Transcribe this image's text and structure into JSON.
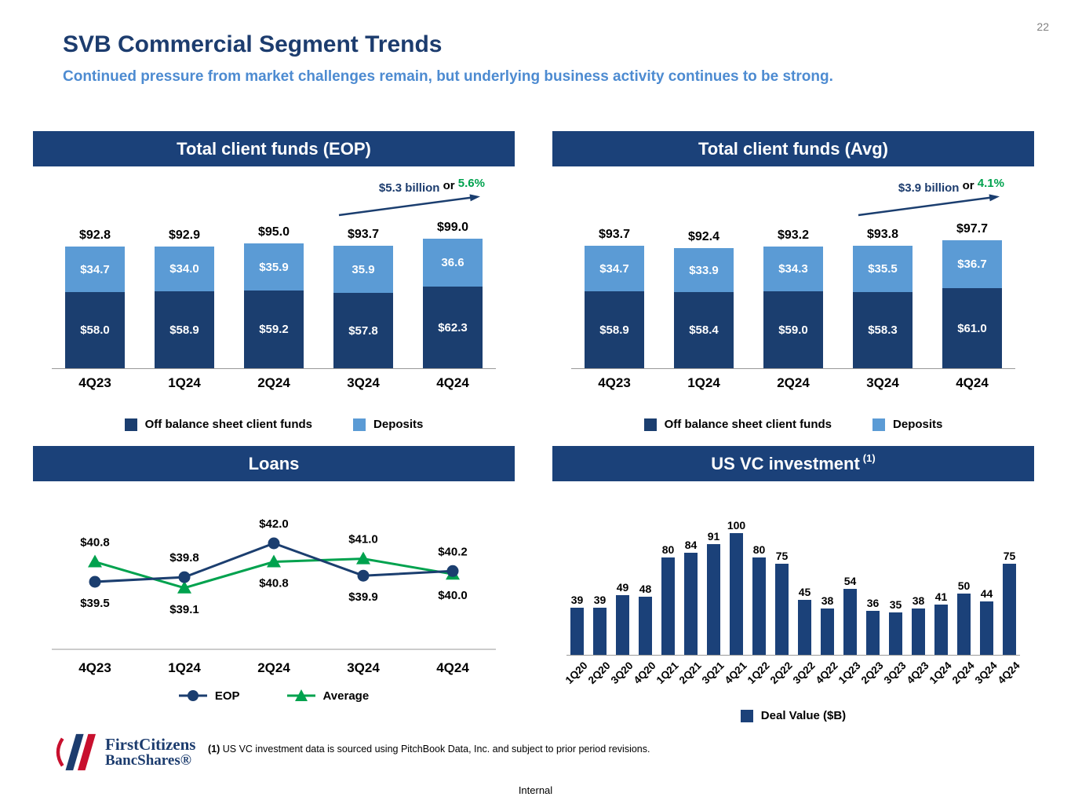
{
  "page": {
    "number": "22",
    "title": "SVB Commercial Segment Trends",
    "subtitle": "Continued pressure from market challenges remain, but underlying business activity continues to be strong.",
    "internal_label": "Internal",
    "footnote": {
      "marker": "(1)",
      "text": " US VC investment data is sourced using PitchBook Data, Inc. and subject to prior period revisions."
    },
    "logo": {
      "line1": "FirstCitizens",
      "line2": "BancShares®"
    }
  },
  "colors": {
    "navy_header": "#1b4179",
    "navy_bar": "#1b3e6f",
    "light_blue": "#5b9bd5",
    "green": "#00a24e",
    "subtitle_blue": "#4d8bd1",
    "axis_gray": "#9a9a9a",
    "logo_red": "#c8102e"
  },
  "chart_data": [
    {
      "type": "bar",
      "stacked": true,
      "title": "Total client funds (EOP)",
      "unit": "$B",
      "categories": [
        "4Q23",
        "1Q24",
        "2Q24",
        "3Q24",
        "4Q24"
      ],
      "series": [
        {
          "name": "Off balance sheet client funds",
          "color": "#1b3e6f",
          "values": [
            58.0,
            58.9,
            59.2,
            57.8,
            62.3
          ],
          "labels": [
            "$58.0",
            "$58.9",
            "$59.2",
            "$57.8",
            "$62.3"
          ]
        },
        {
          "name": "Deposits",
          "color": "#5b9bd5",
          "values": [
            34.7,
            34.0,
            35.9,
            35.9,
            36.6
          ],
          "labels": [
            "$34.7",
            "$34.0",
            "$35.9",
            "35.9",
            "36.6"
          ]
        }
      ],
      "totals": [
        "$92.8",
        "$92.9",
        "$95.0",
        "$93.7",
        "$99.0"
      ],
      "total_values": [
        92.8,
        92.9,
        95.0,
        93.7,
        99.0
      ],
      "annotation": {
        "amount": "$5.3 billion",
        "conj": "or",
        "pct": "5.6%"
      },
      "ylim": [
        0,
        110
      ],
      "legend_position": "bottom"
    },
    {
      "type": "bar",
      "stacked": true,
      "title": "Total client funds (Avg)",
      "unit": "$B",
      "categories": [
        "4Q23",
        "1Q24",
        "2Q24",
        "3Q24",
        "4Q24"
      ],
      "series": [
        {
          "name": "Off balance sheet client funds",
          "color": "#1b3e6f",
          "values": [
            58.9,
            58.4,
            59.0,
            58.3,
            61.0
          ],
          "labels": [
            "$58.9",
            "$58.4",
            "$59.0",
            "$58.3",
            "$61.0"
          ]
        },
        {
          "name": "Deposits",
          "color": "#5b9bd5",
          "values": [
            34.7,
            33.9,
            34.3,
            35.5,
            36.7
          ],
          "labels": [
            "$34.7",
            "$33.9",
            "$34.3",
            "$35.5",
            "$36.7"
          ]
        }
      ],
      "totals": [
        "$93.7",
        "$92.4",
        "$93.2",
        "$93.8",
        "$97.7"
      ],
      "total_values": [
        93.7,
        92.4,
        93.2,
        93.8,
        97.7
      ],
      "annotation": {
        "amount": "$3.9 billion",
        "conj": "or",
        "pct": "4.1%"
      },
      "ylim": [
        0,
        110
      ],
      "legend_position": "bottom"
    },
    {
      "type": "line",
      "title": "Loans",
      "unit": "$B",
      "categories": [
        "4Q23",
        "1Q24",
        "2Q24",
        "3Q24",
        "4Q24"
      ],
      "series": [
        {
          "name": "EOP",
          "marker": "circle",
          "color": "#1b3e6f",
          "values": [
            39.5,
            39.8,
            42.0,
            39.9,
            40.2
          ],
          "labels": [
            "$39.5",
            "$39.8",
            "$42.0",
            "$39.9",
            "$40.2"
          ],
          "label_positions": [
            "below",
            "above",
            "above",
            "below",
            "above"
          ]
        },
        {
          "name": "Average",
          "marker": "triangle",
          "color": "#00a24e",
          "values": [
            40.8,
            39.1,
            40.8,
            41.0,
            40.0
          ],
          "labels": [
            "$40.8",
            "$39.1",
            "$40.8",
            "$41.0",
            "$40.0"
          ],
          "label_positions": [
            "above",
            "below",
            "below",
            "above",
            "below"
          ]
        }
      ],
      "ylim": [
        38.5,
        42.5
      ],
      "legend_position": "bottom"
    },
    {
      "type": "bar",
      "title": "US VC investment",
      "title_superscript": "(1)",
      "bar_color": "#1b4179",
      "categories": [
        "1Q20",
        "2Q20",
        "3Q20",
        "4Q20",
        "1Q21",
        "2Q21",
        "3Q21",
        "4Q21",
        "1Q22",
        "2Q22",
        "3Q22",
        "4Q22",
        "1Q23",
        "2Q23",
        "3Q23",
        "4Q23",
        "1Q24",
        "2Q24",
        "3Q24",
        "4Q24"
      ],
      "values": [
        39,
        39,
        49,
        48,
        80,
        84,
        91,
        100,
        80,
        75,
        45,
        38,
        54,
        36,
        35,
        38,
        41,
        50,
        44,
        75
      ],
      "legend": [
        "Deal Value ($B)"
      ],
      "ylim": [
        0,
        110
      ],
      "legend_position": "bottom"
    }
  ]
}
